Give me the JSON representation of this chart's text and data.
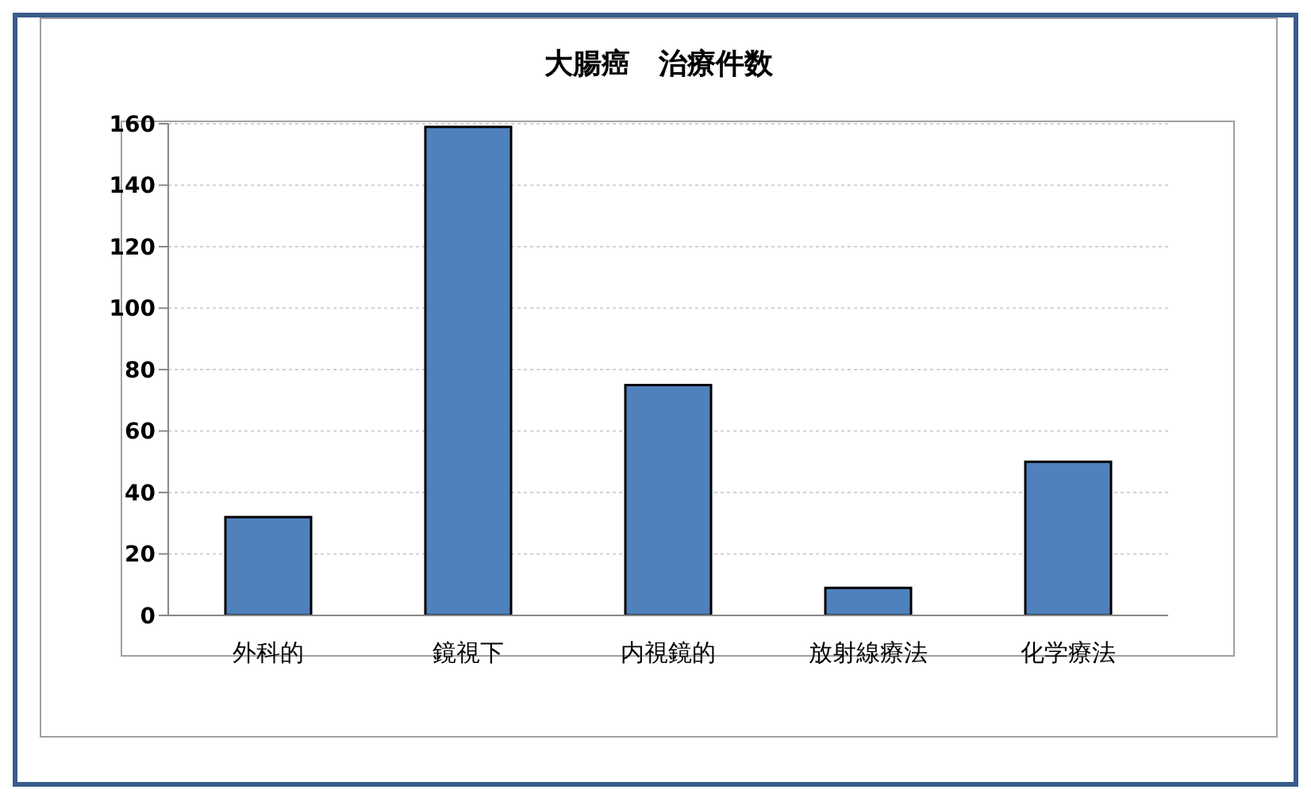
{
  "chart_data": {
    "type": "bar",
    "title": "大腸癌　治療件数",
    "categories": [
      "外科的",
      "鏡視下",
      "内視鏡的",
      "放射線療法",
      "化学療法"
    ],
    "values": [
      32,
      159,
      75,
      9,
      50
    ],
    "color": "#4f81bd",
    "ylim": [
      0,
      160
    ],
    "yticks": [
      0,
      20,
      40,
      60,
      80,
      100,
      120,
      140,
      160
    ],
    "grid": "y",
    "legend": false
  }
}
